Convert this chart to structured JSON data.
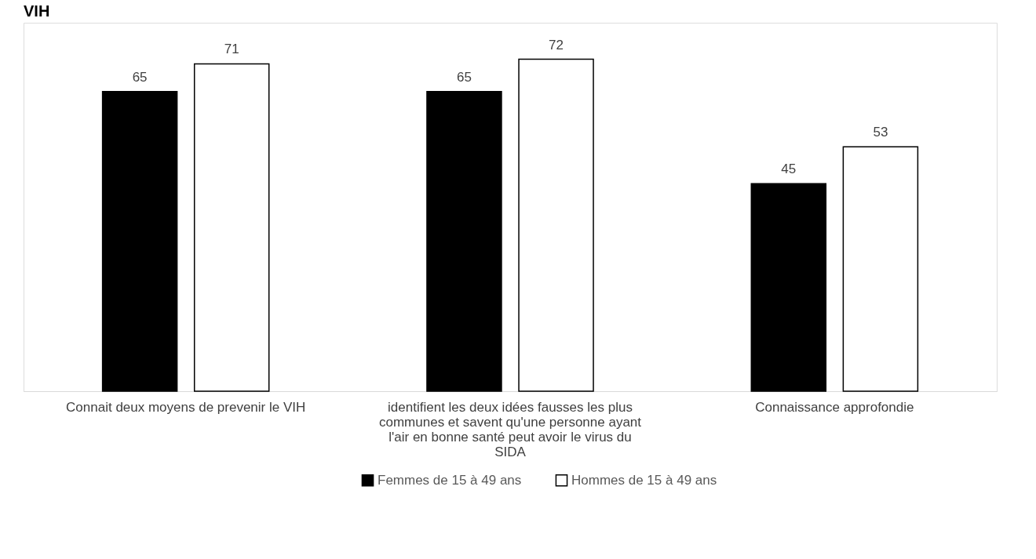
{
  "chart_data": {
    "type": "bar",
    "title": "VIH",
    "data_labels": true,
    "legend": "bottom",
    "categories": [
      "Connait deux moyens de prevenir le VIH",
      "identifient les deux idées fausses les plus communes et savent qu'une personne ayant l'air en bonne santé peut avoir le virus du SIDA",
      "Connaissance approfondie"
    ],
    "series": [
      {
        "name": "Femmes de 15 à 49 ans",
        "color": "#000000",
        "values": [
          65,
          65,
          45
        ]
      },
      {
        "name": "Hommes de 15 à 49 ans",
        "color": "#ffffff",
        "values": [
          71,
          72,
          53
        ]
      }
    ]
  }
}
